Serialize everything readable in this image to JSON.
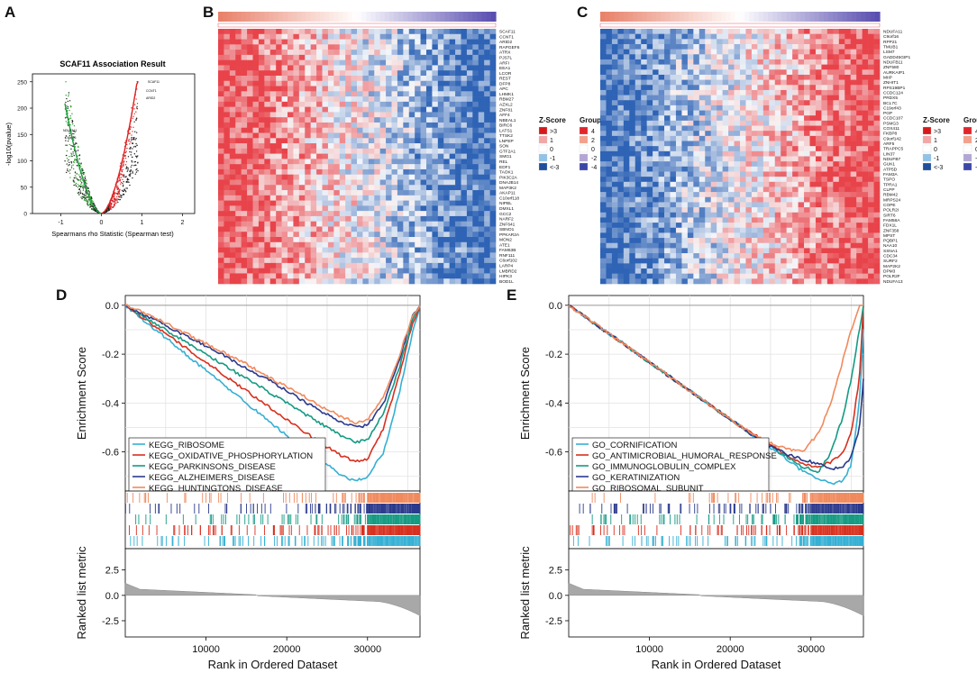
{
  "panel_letters": [
    "A",
    "B",
    "C",
    "D",
    "E"
  ],
  "panel_a": {
    "title": "SCAF11  Association  Result",
    "xlabel": "Spearmans rho Statistic (Spearman test)",
    "ylabel": "-log10(pvalue)",
    "xticks": [
      "-1",
      "0",
      "1",
      "2"
    ],
    "yticks": [
      "0",
      "50",
      "100",
      "150",
      "200",
      "250"
    ],
    "labeled_points": [
      "SCAF11",
      "CCNT1",
      "ARID2",
      "NDUFA11",
      "C9orf16"
    ]
  },
  "heatmap_b": {
    "genes": [
      "SCAF11",
      "CCNT1",
      "ARID2",
      "RAPGEF6",
      "ATRX",
      "PJS7L",
      "ARFI",
      "EEA1",
      "LCOR",
      "REST",
      "DFP8",
      "APC",
      "LHMK1",
      "RBM27",
      "AZXL2",
      "ZNF81",
      "AFF4",
      "NBEAL1",
      "BIRC6",
      "LATS1",
      "TTSK2",
      "LNPEP",
      "SON",
      "GTF2A1",
      "SMG1",
      "REL",
      "EDF1",
      "TAOK1",
      "PIK3C2A",
      "DNAJB14",
      "MAP3K2",
      "AKAP11",
      "C10orf118",
      "NIPBL",
      "DMXL1",
      "GCC2",
      "NARF2",
      "ZNF641",
      "SBNO1",
      "PPKAR2A",
      "MON2",
      "ATE1",
      "FAM63B",
      "RNF111",
      "C6orf102",
      "LARP4",
      "LMBRD2",
      "HIPK3",
      "BOD1L"
    ]
  },
  "heatmap_c": {
    "genes": [
      "NDUFA11",
      "C9orf16",
      "RPP21",
      "TMUB1",
      "LSM7",
      "GADD45GIP1",
      "NDUFB11",
      "ZNF580",
      "AURKAIP1",
      "MIIP",
      "ZNHIT1",
      "RPS19BP1",
      "CCDC124",
      "PRDX5",
      "BCL7C",
      "C19orf43",
      "PGP",
      "CCDC107",
      "PSMG3",
      "COX411",
      "FKBP8",
      "C9orf142",
      "ARF5",
      "TRAPPC5",
      "LIN37",
      "NDUFB7",
      "GUK1",
      "ATP5D",
      "FAM3A",
      "TSPO",
      "TPRA1",
      "CLPP",
      "RBM42",
      "MRPS24",
      "COPE",
      "POLR2I",
      "SIRT6",
      "FAM58A",
      "FDX1L",
      "ZNF358",
      "MPST",
      "PQBP1",
      "NAA10",
      "SSNA1",
      "CDC34",
      "SURF2",
      "MAP2K2",
      "DPM3",
      "POLR2F",
      "NDUFA13"
    ]
  },
  "heatmap_legend": {
    "zscore_title": "Z-Score",
    "group_title": "Group",
    "zscore_items": [
      ">3",
      "1",
      "0",
      "-1",
      "<-3"
    ],
    "group_items": [
      "4",
      "2",
      "0",
      "-2",
      "-4"
    ],
    "zscore_colors": [
      "#d7191c",
      "#f4a5a5",
      "#ffffff",
      "#8fc3e8",
      "#1f4e9c"
    ],
    "group_colors": [
      "#e3242b",
      "#f5a08a",
      "#ffffff",
      "#b3a6d6",
      "#3d46a8"
    ]
  },
  "gsea_axes": {
    "enrichment_ylabel": "Enrichment Score",
    "ranked_ylabel": "Ranked list metric",
    "xlabel": "Rank in Ordered Dataset",
    "es_ticks": [
      "0.0",
      "-0.2",
      "-0.4",
      "-0.6"
    ],
    "metric_ticks": [
      "2.5",
      "0.0",
      "-2.5"
    ],
    "x_ticks": [
      "10000",
      "20000",
      "30000"
    ]
  },
  "chart_data": [
    {
      "panel": "D",
      "type": "line",
      "xlabel": "Rank in Ordered Dataset",
      "ylabel": "Enrichment Score",
      "xlim": [
        0,
        36500
      ],
      "ylim": [
        -0.76,
        0.04
      ],
      "x": [
        0,
        3000,
        6000,
        9000,
        12000,
        15000,
        18000,
        21000,
        24000,
        27000,
        28500,
        30000,
        32000,
        34000,
        35500,
        36500
      ],
      "series": [
        {
          "name": "KEGG_RIBOSOME",
          "color": "#35b0d3",
          "values": [
            0,
            -0.08,
            -0.16,
            -0.24,
            -0.32,
            -0.4,
            -0.48,
            -0.56,
            -0.63,
            -0.7,
            -0.72,
            -0.7,
            -0.6,
            -0.35,
            -0.12,
            0
          ]
        },
        {
          "name": "KEGG_OXIDATIVE_PHOSPHORYLATION",
          "color": "#d7301f",
          "values": [
            0,
            -0.07,
            -0.14,
            -0.21,
            -0.28,
            -0.35,
            -0.42,
            -0.49,
            -0.56,
            -0.62,
            -0.64,
            -0.63,
            -0.5,
            -0.28,
            -0.08,
            0
          ]
        },
        {
          "name": "KEGG_PARKINSONS_DISEASE",
          "color": "#159a83",
          "values": [
            0,
            -0.06,
            -0.12,
            -0.18,
            -0.24,
            -0.3,
            -0.36,
            -0.42,
            -0.48,
            -0.54,
            -0.56,
            -0.55,
            -0.44,
            -0.25,
            -0.07,
            0
          ]
        },
        {
          "name": "KEGG_ALZHEIMERS_DISEASE",
          "color": "#2b3a8c",
          "values": [
            0,
            -0.05,
            -0.1,
            -0.15,
            -0.2,
            -0.26,
            -0.31,
            -0.37,
            -0.43,
            -0.48,
            -0.5,
            -0.49,
            -0.4,
            -0.22,
            -0.05,
            0
          ]
        },
        {
          "name": "KEGG_HUNTINGTONS_DISEASE",
          "color": "#f08a5d",
          "values": [
            0,
            -0.04,
            -0.09,
            -0.14,
            -0.19,
            -0.24,
            -0.3,
            -0.35,
            -0.41,
            -0.46,
            -0.48,
            -0.47,
            -0.37,
            -0.2,
            -0.05,
            0
          ]
        }
      ]
    },
    {
      "panel": "E",
      "type": "line",
      "xlabel": "Rank in Ordered Dataset",
      "ylabel": "Enrichment Score",
      "xlim": [
        0,
        36500
      ],
      "ylim": [
        -0.76,
        0.04
      ],
      "x": [
        0,
        3000,
        6000,
        9000,
        12000,
        15000,
        18000,
        21000,
        24000,
        27000,
        29000,
        31000,
        32500,
        34000,
        35000,
        36000,
        36500
      ],
      "series": [
        {
          "name": "GO_CORNIFICATION",
          "color": "#35b0d3",
          "values": [
            0,
            -0.07,
            -0.14,
            -0.21,
            -0.28,
            -0.35,
            -0.42,
            -0.49,
            -0.56,
            -0.63,
            -0.68,
            -0.71,
            -0.73,
            -0.72,
            -0.65,
            -0.4,
            -0.1
          ]
        },
        {
          "name": "GO_ANTIMICROBIAL_HUMORAL_RESPONSE",
          "color": "#d7301f",
          "values": [
            0,
            -0.07,
            -0.14,
            -0.21,
            -0.28,
            -0.35,
            -0.42,
            -0.49,
            -0.55,
            -0.61,
            -0.65,
            -0.66,
            -0.64,
            -0.6,
            -0.52,
            -0.3,
            0
          ]
        },
        {
          "name": "GO_IMMUNOGLOBULIN_COMPLEX",
          "color": "#159a83",
          "values": [
            0,
            -0.07,
            -0.14,
            -0.21,
            -0.28,
            -0.35,
            -0.42,
            -0.49,
            -0.56,
            -0.62,
            -0.66,
            -0.68,
            -0.6,
            -0.45,
            -0.3,
            -0.1,
            0
          ]
        },
        {
          "name": "GO_KERATINIZATION",
          "color": "#2b3a8c",
          "values": [
            0,
            -0.07,
            -0.14,
            -0.21,
            -0.28,
            -0.35,
            -0.42,
            -0.49,
            -0.56,
            -0.61,
            -0.63,
            -0.65,
            -0.67,
            -0.66,
            -0.62,
            -0.5,
            -0.3
          ]
        },
        {
          "name": "GO_RIBOSOMAL_SUBUNIT",
          "color": "#f08a5d",
          "values": [
            0,
            -0.07,
            -0.14,
            -0.21,
            -0.28,
            -0.35,
            -0.42,
            -0.49,
            -0.55,
            -0.59,
            -0.6,
            -0.52,
            -0.4,
            -0.22,
            -0.1,
            0,
            0
          ]
        }
      ]
    }
  ]
}
